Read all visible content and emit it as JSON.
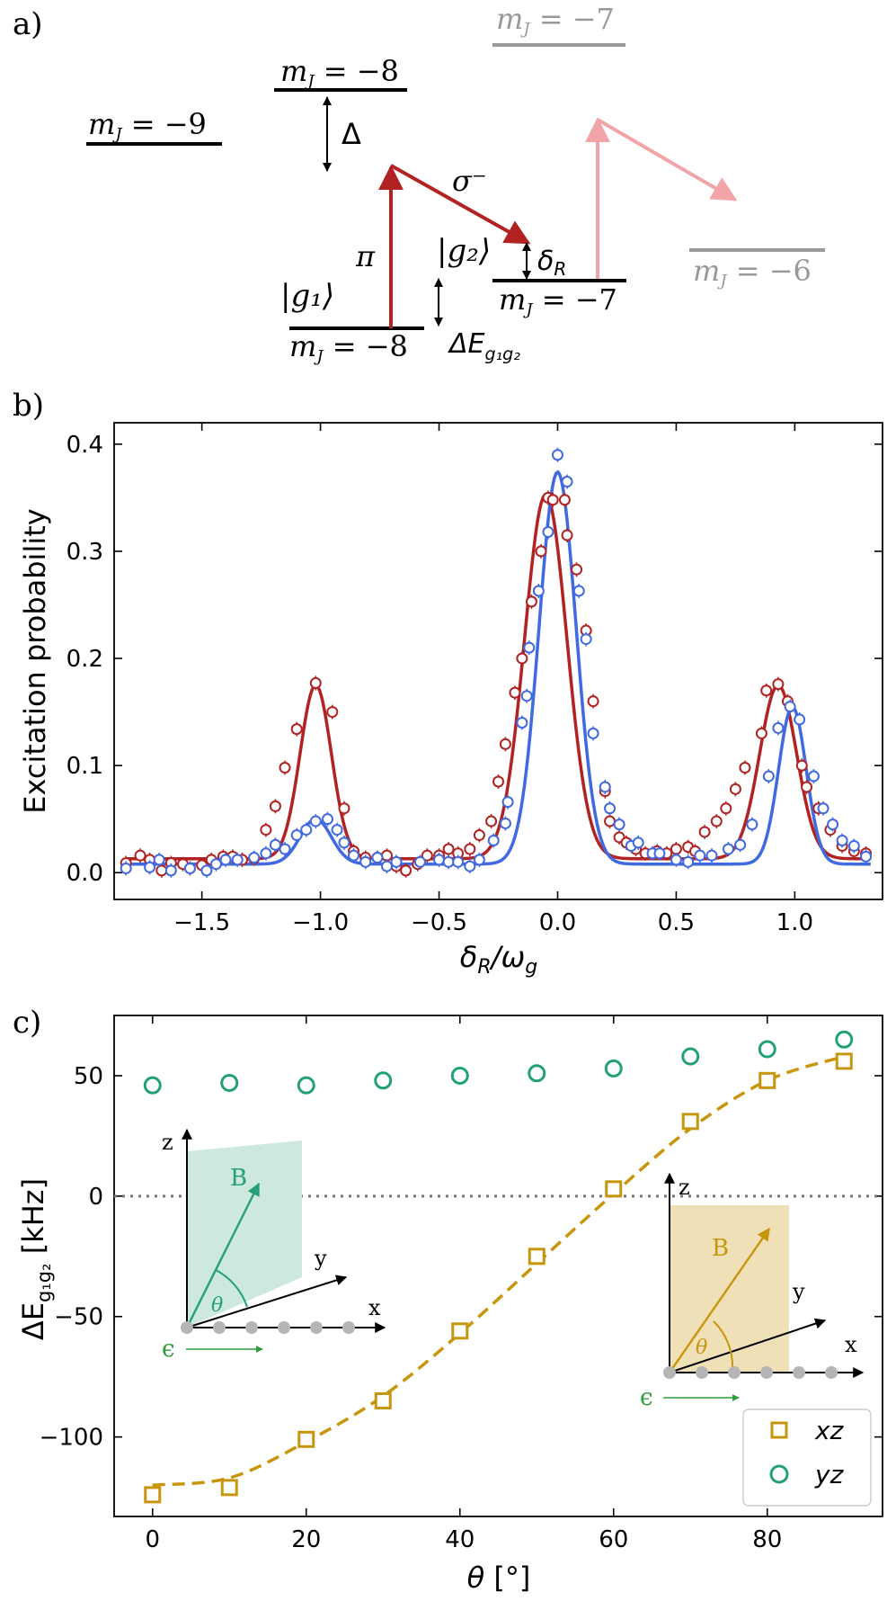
{
  "colors": {
    "red": "#b22222",
    "blue": "#4169e1",
    "gold": "#c8960c",
    "teal": "#23a07a",
    "pink": "#f2a5a8",
    "gray": "#999999",
    "black": "#000000",
    "epsilon": "#2e9e3a"
  },
  "panel_a": {
    "panel_label": "a)",
    "levels": [
      {
        "text": "m",
        "sub": "J",
        "eq": " = −9",
        "style": "black"
      },
      {
        "text": "m",
        "sub": "J",
        "eq": " = −8",
        "style": "black"
      },
      {
        "text": "m",
        "sub": "J",
        "eq": " = −7",
        "style": "gray"
      },
      {
        "text": "m",
        "sub": "J",
        "eq": " = −8",
        "style": "black"
      },
      {
        "text": "m",
        "sub": "J",
        "eq": " = −7",
        "style": "black"
      },
      {
        "text": "m",
        "sub": "J",
        "eq": " = −6",
        "style": "gray"
      }
    ],
    "delta_label": "Δ",
    "sigma_label": "σ⁻",
    "pi_label": "π",
    "g1_label": "|g₁⟩",
    "g2_label": "|g₂⟩",
    "deltaR_label": "δR",
    "deltaE_label": "ΔE g₁g₂"
  },
  "panel_b": {
    "panel_label": "b)",
    "xlabel": "δR/ωg",
    "ylabel": "Excitation probability"
  },
  "panel_c": {
    "panel_label": "c)",
    "ylabel": "ΔE g₁g₂ [kHz]",
    "xlabel": "θ [°]",
    "legend": [
      {
        "name": "xz",
        "color": "#c8960c",
        "marker": "square"
      },
      {
        "name": "yz",
        "color": "#23a07a",
        "marker": "circle"
      }
    ],
    "inset_left": {
      "z": "z",
      "y": "y",
      "x": "x",
      "B": "B",
      "theta": "θ",
      "eps": "ϵ"
    },
    "inset_right": {
      "z": "z",
      "y": "y",
      "x": "x",
      "B": "B",
      "theta": "θ",
      "eps": "ϵ"
    }
  },
  "chart_data": [
    {
      "type": "scatter",
      "xlabel": "δR/ωg",
      "ylabel": "Excitation probability",
      "xlim": [
        -1.87,
        1.37
      ],
      "ylim": [
        -0.025,
        0.42
      ],
      "xticks": [
        -1.5,
        -1.0,
        -0.5,
        0.0,
        0.5,
        1.0
      ],
      "xtick_labels": [
        "−1.5",
        "−1.0",
        "−0.5",
        "0.0",
        "0.5",
        "1.0"
      ],
      "yticks": [
        0.0,
        0.1,
        0.2,
        0.3,
        0.4
      ],
      "ytick_labels": [
        "0.0",
        "0.1",
        "0.2",
        "0.3",
        "0.4"
      ],
      "series": [
        {
          "color": "#b22222",
          "points": [
            [
              -1.82,
              0.009
            ],
            [
              -1.76,
              0.016
            ],
            [
              -1.72,
              0.012
            ],
            [
              -1.67,
              0.002
            ],
            [
              -1.63,
              0.009
            ],
            [
              -1.58,
              0.008
            ],
            [
              -1.55,
              0.004
            ],
            [
              -1.5,
              0.007
            ],
            [
              -1.46,
              0.012
            ],
            [
              -1.41,
              0.015
            ],
            [
              -1.37,
              0.015
            ],
            [
              -1.33,
              0.012
            ],
            [
              -1.28,
              0.013
            ],
            [
              -1.23,
              0.04
            ],
            [
              -1.19,
              0.062
            ],
            [
              -1.15,
              0.098
            ],
            [
              -1.1,
              0.134
            ],
            [
              -1.02,
              0.177
            ],
            [
              -0.95,
              0.15
            ],
            [
              -0.9,
              0.06
            ],
            [
              -0.86,
              0.02
            ],
            [
              -0.81,
              0.014
            ],
            [
              -0.76,
              0.014
            ],
            [
              -0.72,
              0.016
            ],
            [
              -0.68,
              0.006
            ],
            [
              -0.64,
              0.002
            ],
            [
              -0.59,
              0.008
            ],
            [
              -0.55,
              0.016
            ],
            [
              -0.5,
              0.016
            ],
            [
              -0.46,
              0.022
            ],
            [
              -0.42,
              0.018
            ],
            [
              -0.37,
              0.022
            ],
            [
              -0.33,
              0.035
            ],
            [
              -0.28,
              0.048
            ],
            [
              -0.25,
              0.085
            ],
            [
              -0.22,
              0.12
            ],
            [
              -0.18,
              0.168
            ],
            [
              -0.15,
              0.2
            ],
            [
              -0.11,
              0.253
            ],
            [
              -0.07,
              0.3
            ],
            [
              -0.04,
              0.35
            ],
            [
              -0.02,
              0.348
            ],
            [
              0.03,
              0.348
            ],
            [
              0.04,
              0.315
            ],
            [
              0.08,
              0.283
            ],
            [
              0.12,
              0.226
            ],
            [
              0.15,
              0.16
            ],
            [
              0.2,
              0.076
            ],
            [
              0.22,
              0.048
            ],
            [
              0.26,
              0.033
            ],
            [
              0.29,
              0.028
            ],
            [
              0.33,
              0.022
            ],
            [
              0.37,
              0.018
            ],
            [
              0.42,
              0.02
            ],
            [
              0.46,
              0.018
            ],
            [
              0.5,
              0.022
            ],
            [
              0.55,
              0.024
            ],
            [
              0.58,
              0.02
            ],
            [
              0.62,
              0.038
            ],
            [
              0.67,
              0.048
            ],
            [
              0.71,
              0.06
            ],
            [
              0.75,
              0.078
            ],
            [
              0.79,
              0.098
            ],
            [
              0.86,
              0.13
            ],
            [
              0.88,
              0.17
            ],
            [
              0.93,
              0.176
            ],
            [
              0.97,
              0.16
            ],
            [
              1.03,
              0.1
            ],
            [
              1.05,
              0.08
            ],
            [
              1.1,
              0.06
            ],
            [
              1.15,
              0.04
            ],
            [
              1.2,
              0.025
            ],
            [
              1.25,
              0.02
            ],
            [
              1.3,
              0.018
            ]
          ]
        },
        {
          "color": "#4169e1",
          "points": [
            [
              -1.82,
              0.004
            ],
            [
              -1.72,
              0.005
            ],
            [
              -1.68,
              0.012
            ],
            [
              -1.63,
              0.002
            ],
            [
              -1.55,
              0.004
            ],
            [
              -1.48,
              0.002
            ],
            [
              -1.44,
              0.008
            ],
            [
              -1.4,
              0.012
            ],
            [
              -1.35,
              0.012
            ],
            [
              -1.28,
              0.014
            ],
            [
              -1.23,
              0.018
            ],
            [
              -1.19,
              0.026
            ],
            [
              -1.15,
              0.022
            ],
            [
              -1.1,
              0.035
            ],
            [
              -1.06,
              0.04
            ],
            [
              -1.02,
              0.048
            ],
            [
              -0.97,
              0.05
            ],
            [
              -0.93,
              0.04
            ],
            [
              -0.9,
              0.028
            ],
            [
              -0.86,
              0.016
            ],
            [
              -0.81,
              0.01
            ],
            [
              -0.76,
              0.014
            ],
            [
              -0.72,
              0.006
            ],
            [
              -0.68,
              0.01
            ],
            [
              -0.58,
              0.01
            ],
            [
              -0.5,
              0.012
            ],
            [
              -0.46,
              0.01
            ],
            [
              -0.42,
              0.01
            ],
            [
              -0.37,
              0.006
            ],
            [
              -0.33,
              0.012
            ],
            [
              -0.27,
              0.03
            ],
            [
              -0.22,
              0.046
            ],
            [
              -0.21,
              0.066
            ],
            [
              -0.15,
              0.14
            ],
            [
              -0.13,
              0.165
            ],
            [
              -0.12,
              0.21
            ],
            [
              -0.08,
              0.263
            ],
            [
              -0.04,
              0.318
            ],
            [
              0.0,
              0.39
            ],
            [
              0.04,
              0.365
            ],
            [
              0.09,
              0.263
            ],
            [
              0.12,
              0.218
            ],
            [
              0.15,
              0.13
            ],
            [
              0.2,
              0.08
            ],
            [
              0.22,
              0.06
            ],
            [
              0.26,
              0.045
            ],
            [
              0.31,
              0.025
            ],
            [
              0.34,
              0.028
            ],
            [
              0.4,
              0.018
            ],
            [
              0.43,
              0.018
            ],
            [
              0.5,
              0.012
            ],
            [
              0.55,
              0.01
            ],
            [
              0.6,
              0.016
            ],
            [
              0.65,
              0.016
            ],
            [
              0.72,
              0.022
            ],
            [
              0.77,
              0.026
            ],
            [
              0.82,
              0.045
            ],
            [
              0.89,
              0.09
            ],
            [
              0.93,
              0.135
            ],
            [
              0.98,
              0.155
            ],
            [
              1.02,
              0.143
            ],
            [
              1.08,
              0.09
            ],
            [
              1.12,
              0.06
            ],
            [
              1.16,
              0.045
            ],
            [
              1.2,
              0.03
            ],
            [
              1.25,
              0.025
            ],
            [
              1.3,
              0.015
            ]
          ]
        }
      ],
      "fits": [
        {
          "color": "#b22222",
          "base": 0.013,
          "peaks": [
            [
              -1.02,
              0.162,
              0.066
            ],
            [
              -0.05,
              0.34,
              0.089
            ],
            [
              0.93,
              0.162,
              0.078
            ]
          ]
        },
        {
          "color": "#4169e1",
          "base": 0.008,
          "peaks": [
            [
              -1.02,
              0.042,
              0.066
            ],
            [
              0.0,
              0.366,
              0.078
            ],
            [
              0.99,
              0.147,
              0.058
            ]
          ]
        }
      ]
    },
    {
      "type": "scatter",
      "xlabel": "θ [°]",
      "ylabel": "ΔE g₁g₂ [kHz]",
      "xlim": [
        -5,
        95
      ],
      "ylim": [
        -133,
        75
      ],
      "xticks": [
        0,
        20,
        40,
        60,
        80
      ],
      "xtick_labels": [
        "0",
        "20",
        "40",
        "60",
        "80"
      ],
      "yticks": [
        -100,
        -50,
        0,
        50
      ],
      "ytick_labels": [
        "−100",
        "−50",
        "0",
        "50"
      ],
      "series": [
        {
          "name": "xz",
          "color": "#c8960c",
          "marker": "square",
          "x": [
            0,
            10,
            20,
            30,
            40,
            50,
            60,
            70,
            80,
            90
          ],
          "y": [
            -124,
            -121,
            -101,
            -85,
            -56,
            -25,
            3,
            31,
            48,
            56
          ]
        },
        {
          "name": "yz",
          "color": "#23a07a",
          "marker": "circle",
          "x": [
            0,
            10,
            20,
            30,
            40,
            50,
            60,
            70,
            80,
            90
          ],
          "y": [
            46,
            47,
            46,
            48,
            50,
            51,
            53,
            58,
            61,
            65
          ]
        }
      ],
      "fit_xz": {
        "x": [
          0,
          10,
          20,
          30,
          40,
          50,
          60,
          70,
          80,
          90
        ],
        "y": [
          -120,
          -117,
          -102,
          -83,
          -57,
          -28,
          1,
          28,
          48,
          58
        ]
      },
      "zero_line": 0
    }
  ]
}
